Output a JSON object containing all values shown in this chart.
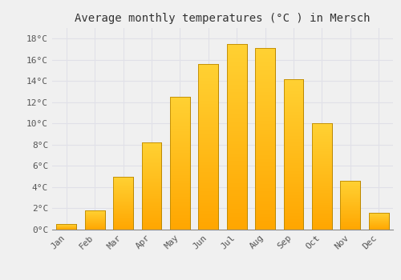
{
  "title": "Average monthly temperatures (°C ) in Mersch",
  "months": [
    "Jan",
    "Feb",
    "Mar",
    "Apr",
    "May",
    "Jun",
    "Jul",
    "Aug",
    "Sep",
    "Oct",
    "Nov",
    "Dec"
  ],
  "values": [
    0.5,
    1.8,
    5.0,
    8.2,
    12.5,
    15.6,
    17.5,
    17.1,
    14.2,
    10.0,
    4.6,
    1.6
  ],
  "bar_color_bottom": "#FFA500",
  "bar_color_top": "#FFD050",
  "bar_edge_color": "#BB8800",
  "ylim": [
    0,
    19
  ],
  "yticks": [
    0,
    2,
    4,
    6,
    8,
    10,
    12,
    14,
    16,
    18
  ],
  "ytick_labels": [
    "0°C",
    "2°C",
    "4°C",
    "6°C",
    "8°C",
    "10°C",
    "12°C",
    "14°C",
    "16°C",
    "18°C"
  ],
  "background_color": "#F0F0F0",
  "grid_color": "#E0E0E8",
  "title_fontsize": 10,
  "tick_fontsize": 8,
  "bar_width": 0.7
}
